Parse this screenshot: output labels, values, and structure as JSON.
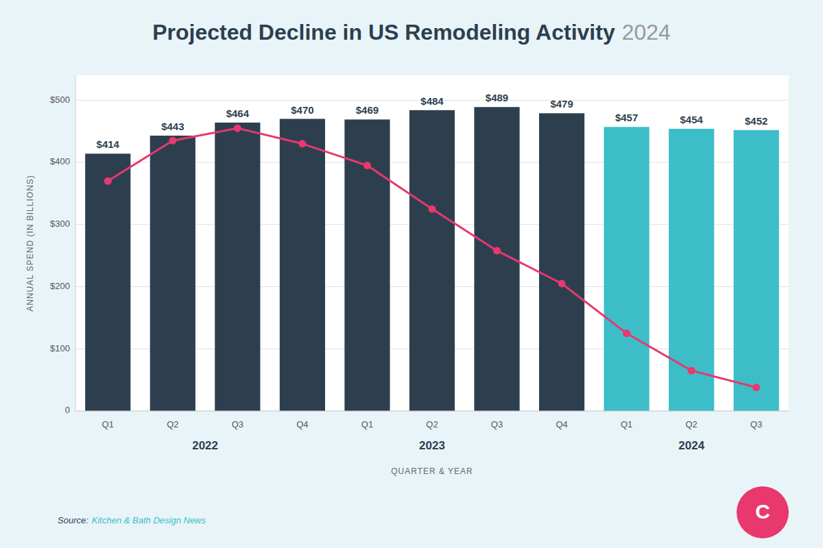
{
  "chart_data": {
    "type": "bar",
    "title": "Projected Decline in US Remodeling Activity",
    "subtitle": "2024",
    "categories": [
      "Q1",
      "Q2",
      "Q3",
      "Q4",
      "Q1",
      "Q2",
      "Q3",
      "Q4",
      "Q1",
      "Q2",
      "Q3"
    ],
    "series": [
      {
        "type": "bar",
        "colors": [
          "#2d3f4f",
          "#2d3f4f",
          "#2d3f4f",
          "#2d3f4f",
          "#2d3f4f",
          "#2d3f4f",
          "#2d3f4f",
          "#2d3f4f",
          "#3dbdc8",
          "#3dbdc8",
          "#3dbdc8"
        ],
        "values": [
          414,
          443,
          464,
          470,
          469,
          484,
          489,
          479,
          457,
          454,
          452
        ],
        "data_labels": true,
        "value_labels": [
          "$414",
          "$443",
          "$464",
          "$470",
          "$469",
          "$484",
          "$489",
          "$479",
          "$457",
          "$454",
          "$452"
        ]
      },
      {
        "type": "line",
        "color": "#e8386d",
        "marker": "circle",
        "line_style": "solid",
        "values": [
          370,
          435,
          455,
          430,
          395,
          325,
          258,
          205,
          125,
          65,
          38
        ]
      }
    ],
    "xlabel": "QUARTER & YEAR",
    "ylabel": "ANNUAL SPEND (IN BILLIONS)",
    "ylim": [
      0,
      540
    ],
    "yticks": [
      0,
      {
        "value": 100,
        "label": "$100"
      },
      {
        "value": 200,
        "label": "$200"
      },
      {
        "value": 300,
        "label": "$300"
      },
      {
        "value": 400,
        "label": "$400"
      },
      {
        "value": 500,
        "label": "$500"
      }
    ],
    "grid": true,
    "annotations": [
      {
        "text": "2022",
        "x": 1.5
      },
      {
        "text": "2023",
        "x": 5.0
      },
      {
        "text": "2024",
        "x": 9.0
      }
    ],
    "source": "Source:",
    "source_link": "Kitchen & Bath Design News",
    "logo": "C"
  }
}
